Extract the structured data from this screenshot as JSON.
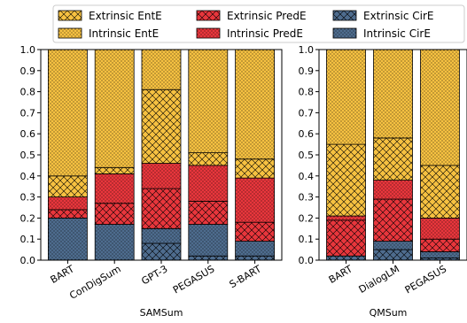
{
  "chart_data": [
    {
      "type": "bar",
      "stacked": true,
      "xlabel": "SAMSum",
      "ylabel": "",
      "ylim": [
        0,
        1.0
      ],
      "yticks": [
        "0.0",
        "0.1",
        "0.2",
        "0.3",
        "0.4",
        "0.5",
        "0.6",
        "0.7",
        "0.8",
        "0.9",
        "1.0"
      ],
      "categories": [
        "BART",
        "ConDigSum",
        "GPT-3",
        "PEGASUS",
        "S-BART"
      ],
      "series": [
        {
          "name": "Extrinsic CirE",
          "values": [
            0.0,
            0.0,
            0.08,
            0.02,
            0.02
          ]
        },
        {
          "name": "Intrinsic CirE",
          "values": [
            0.2,
            0.17,
            0.07,
            0.15,
            0.07
          ]
        },
        {
          "name": "Extrinsic PredE",
          "values": [
            0.04,
            0.1,
            0.19,
            0.11,
            0.09
          ]
        },
        {
          "name": "Intrinsic PredE",
          "values": [
            0.06,
            0.14,
            0.12,
            0.17,
            0.21
          ]
        },
        {
          "name": "Extrinsic EntE",
          "values": [
            0.1,
            0.03,
            0.35,
            0.06,
            0.09
          ]
        },
        {
          "name": "Intrinsic EntE",
          "values": [
            0.6,
            0.56,
            0.19,
            0.49,
            0.52
          ]
        }
      ]
    },
    {
      "type": "bar",
      "stacked": true,
      "xlabel": "QMSum",
      "ylabel": "",
      "ylim": [
        0,
        1.0
      ],
      "yticks": [
        "0.0",
        "0.1",
        "0.2",
        "0.3",
        "0.4",
        "0.5",
        "0.6",
        "0.7",
        "0.8",
        "0.9",
        "1.0"
      ],
      "categories": [
        "BART",
        "DialogLM",
        "PEGASUS"
      ],
      "series": [
        {
          "name": "Extrinsic CirE",
          "values": [
            0.02,
            0.05,
            0.01
          ]
        },
        {
          "name": "Intrinsic CirE",
          "values": [
            0.0,
            0.04,
            0.03
          ]
        },
        {
          "name": "Extrinsic PredE",
          "values": [
            0.17,
            0.2,
            0.06
          ]
        },
        {
          "name": "Intrinsic PredE",
          "values": [
            0.02,
            0.09,
            0.1
          ]
        },
        {
          "name": "Extrinsic EntE",
          "values": [
            0.34,
            0.2,
            0.25
          ]
        },
        {
          "name": "Intrinsic EntE",
          "values": [
            0.45,
            0.42,
            0.55
          ]
        }
      ]
    }
  ],
  "legend": {
    "placement": "top",
    "entries": [
      {
        "label": "Extrinsic EntE",
        "color": "#f6c141",
        "hatch": "cross"
      },
      {
        "label": "Extrinsic PredE",
        "color": "#e8363c",
        "hatch": "cross"
      },
      {
        "label": "Extrinsic CirE",
        "color": "#4e6c8e",
        "hatch": "cross"
      },
      {
        "label": "Intrinsic EntE",
        "color": "#f6c141",
        "hatch": "dots"
      },
      {
        "label": "Intrinsic PredE",
        "color": "#e8363c",
        "hatch": "dots"
      },
      {
        "label": "Intrinsic CirE",
        "color": "#4e6c8e",
        "hatch": "dots"
      }
    ]
  },
  "colors": {
    "EntE": "#f6c141",
    "PredE": "#e8363c",
    "CirE": "#4e6c8e"
  }
}
